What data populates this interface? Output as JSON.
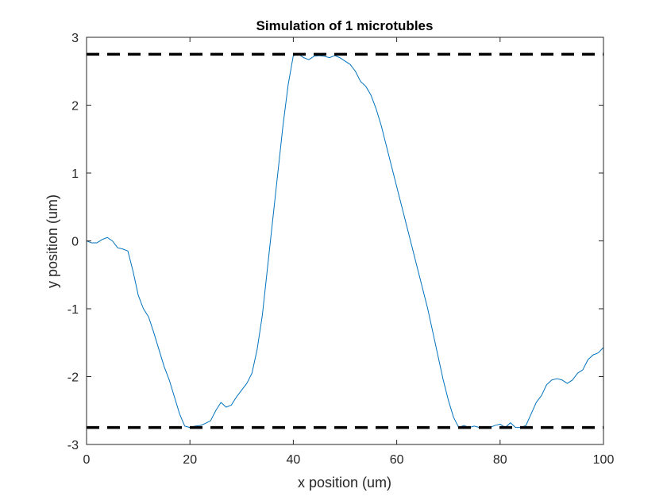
{
  "chart_data": {
    "type": "line",
    "title": "Simulation of 1 microtubles",
    "xlabel": "x position (um)",
    "ylabel": "y position (um)",
    "xlim": [
      0,
      100
    ],
    "ylim": [
      -3,
      3
    ],
    "xticks": [
      "0",
      "20",
      "40",
      "60",
      "80",
      "100"
    ],
    "yticks": [
      "3",
      "2",
      "1",
      "0",
      "-1",
      "-2",
      "-3"
    ],
    "grid": false,
    "legend": "none",
    "colors": {
      "trajectory": "#0072bd",
      "boundary": "#000000",
      "axes": "#262626"
    },
    "boundaries": [
      {
        "y": 2.75,
        "style": "dashed"
      },
      {
        "y": -2.75,
        "style": "dashed"
      }
    ],
    "series": [
      {
        "x": [
          0,
          1,
          2,
          3,
          4,
          5,
          6,
          7,
          8,
          9,
          10,
          11,
          12,
          13,
          14,
          15,
          16,
          17,
          18,
          19,
          20,
          21,
          22,
          23,
          24,
          25,
          26,
          27,
          28,
          29,
          30,
          31,
          32,
          33,
          34,
          35,
          36,
          37,
          38,
          39,
          40,
          41,
          42,
          43,
          44,
          45,
          46,
          47,
          48,
          49,
          50,
          51,
          52,
          53,
          54,
          55,
          56,
          57,
          58,
          59,
          60,
          61,
          62,
          63,
          64,
          65,
          66,
          67,
          68,
          69,
          70,
          71,
          72,
          73,
          74,
          75,
          76,
          77,
          78,
          79,
          80,
          81,
          82,
          83,
          84,
          85,
          86,
          87,
          88,
          89,
          90,
          91,
          92,
          93,
          94,
          95,
          96,
          97,
          98,
          99,
          100
        ],
        "y": [
          0,
          -0.03,
          -0.03,
          0.02,
          0.05,
          0,
          -0.1,
          -0.12,
          -0.15,
          -0.45,
          -0.8,
          -1.0,
          -1.12,
          -1.35,
          -1.6,
          -1.85,
          -2.05,
          -2.3,
          -2.55,
          -2.73,
          -2.75,
          -2.73,
          -2.72,
          -2.69,
          -2.65,
          -2.5,
          -2.38,
          -2.45,
          -2.42,
          -2.3,
          -2.2,
          -2.1,
          -1.95,
          -1.6,
          -1.1,
          -0.4,
          0.3,
          1.0,
          1.7,
          2.3,
          2.73,
          2.75,
          2.7,
          2.67,
          2.72,
          2.73,
          2.72,
          2.7,
          2.73,
          2.7,
          2.65,
          2.6,
          2.5,
          2.35,
          2.28,
          2.15,
          1.95,
          1.7,
          1.4,
          1.1,
          0.8,
          0.5,
          0.2,
          -0.1,
          -0.4,
          -0.7,
          -1.0,
          -1.35,
          -1.7,
          -2.05,
          -2.35,
          -2.6,
          -2.75,
          -2.72,
          -2.75,
          -2.73,
          -2.75,
          -2.74,
          -2.75,
          -2.72,
          -2.7,
          -2.75,
          -2.68,
          -2.75,
          -2.75,
          -2.72,
          -2.55,
          -2.38,
          -2.28,
          -2.12,
          -2.05,
          -2.03,
          -2.05,
          -2.1,
          -2.05,
          -1.95,
          -1.9,
          -1.75,
          -1.68,
          -1.65,
          -1.57
        ]
      }
    ]
  }
}
